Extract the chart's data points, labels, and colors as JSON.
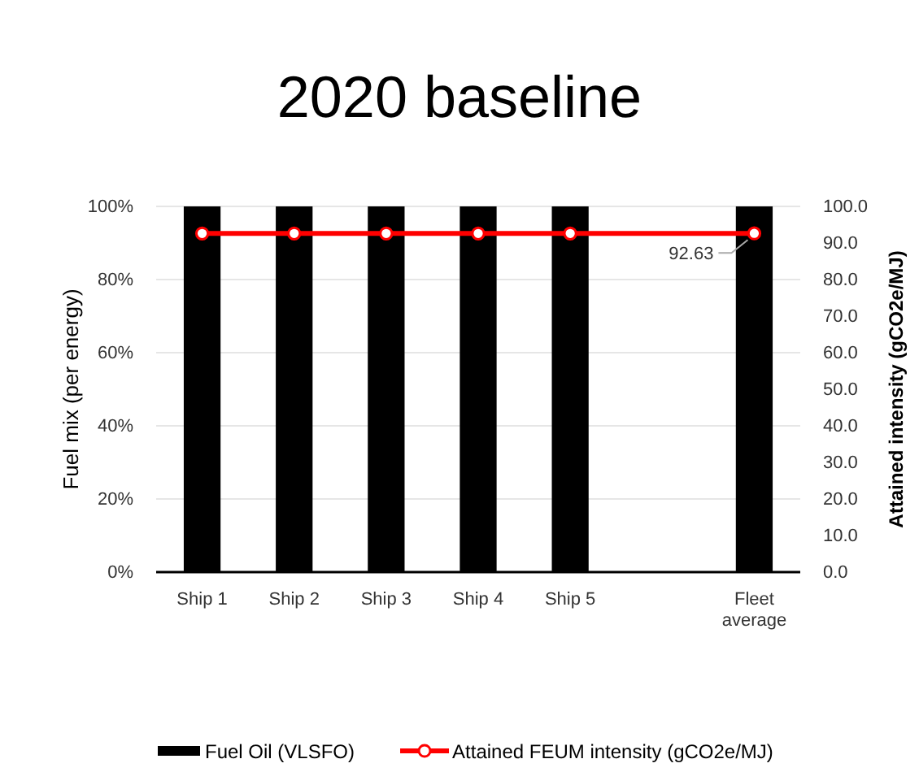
{
  "chart_data": {
    "type": "bar",
    "title": "2020 baseline",
    "ylabel": "Fuel mix (per energy)",
    "y2label": "Attained intensity (gCO2e/MJ)",
    "categories": [
      "Ship 1",
      "Ship 2",
      "Ship 3",
      "Ship 4",
      "Ship 5",
      null,
      "Fleet average"
    ],
    "series": [
      {
        "name": "Fuel Oil (VLSFO)",
        "color": "#000000",
        "values": [
          100,
          100,
          100,
          100,
          100,
          null,
          100
        ]
      },
      {
        "name": "Attained FEUM intensity (gCO2e/MJ)",
        "type": "line",
        "axis": "y2",
        "color": "#ff0000",
        "marker": "circle",
        "values": [
          92.6,
          92.6,
          92.6,
          92.6,
          92.6,
          null,
          92.63
        ],
        "value_labels": [
          null,
          null,
          null,
          null,
          null,
          null,
          "92.63"
        ]
      }
    ],
    "ylim": [
      0,
      100
    ],
    "yticks": [
      {
        "value": 0,
        "label": "0%"
      },
      {
        "value": 20,
        "label": "20%"
      },
      {
        "value": 40,
        "label": "40%"
      },
      {
        "value": 60,
        "label": "60%"
      },
      {
        "value": 80,
        "label": "80%"
      },
      {
        "value": 100,
        "label": "100%"
      }
    ],
    "y2lim": [
      0,
      100
    ],
    "y2ticks": [
      {
        "value": 0,
        "label": "0.0"
      },
      {
        "value": 10,
        "label": "10.0"
      },
      {
        "value": 20,
        "label": "20.0"
      },
      {
        "value": 30,
        "label": "30.0"
      },
      {
        "value": 40,
        "label": "40.0"
      },
      {
        "value": 50,
        "label": "50.0"
      },
      {
        "value": 60,
        "label": "60.0"
      },
      {
        "value": 70,
        "label": "70.0"
      },
      {
        "value": 80,
        "label": "80.0"
      },
      {
        "value": 90,
        "label": "90.0"
      },
      {
        "value": 100,
        "label": "100.0"
      }
    ],
    "grid": "y",
    "legend": "bottom"
  }
}
